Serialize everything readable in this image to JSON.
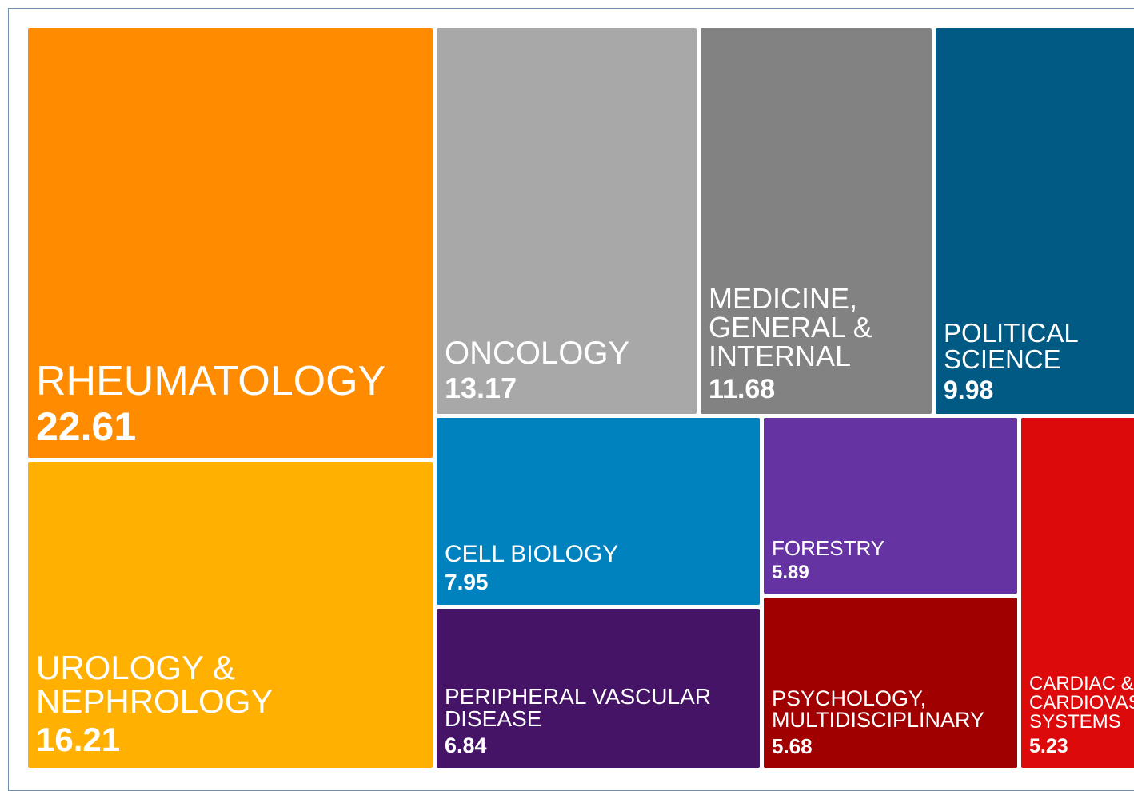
{
  "chart_data": {
    "type": "treemap",
    "categories": [
      "RHEUMATOLOGY",
      "UROLOGY & NEPHROLOGY",
      "ONCOLOGY",
      "MEDICINE, GENERAL & INTERNAL",
      "POLITICAL SCIENCE",
      "CELL BIOLOGY",
      "PERIPHERAL VASCULAR DISEASE",
      "FORESTRY",
      "PSYCHOLOGY, MULTIDISCIPLINARY",
      "CARDIAC & CARDIOVASCULAR SYSTEMS"
    ],
    "values": [
      22.61,
      16.21,
      13.17,
      11.68,
      9.98,
      7.95,
      6.84,
      5.89,
      5.68,
      5.23
    ],
    "colors": [
      "#ff8c00",
      "#ffb000",
      "#a8a8a8",
      "#828282",
      "#005a84",
      "#0082be",
      "#461466",
      "#6634a2",
      "#a00000",
      "#dc0a0a"
    ]
  }
}
